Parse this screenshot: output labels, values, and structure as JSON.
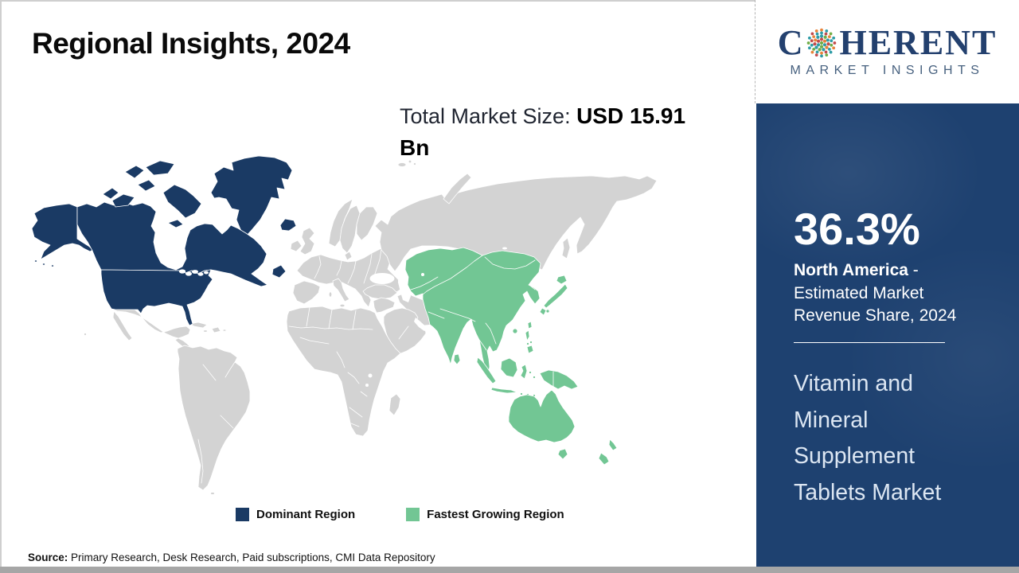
{
  "title": "Regional Insights, 2024",
  "market_size": {
    "label": "Total Market Size: ",
    "value": "USD 15.91 Bn"
  },
  "logo": {
    "brand_c": "C",
    "brand_rest": "HERENT",
    "subtitle": "MARKET INSIGHTS"
  },
  "logo_dot_colors": [
    "#2e9ca6",
    "#70ad47",
    "#c24b4b",
    "#e8833a",
    "#3a6ea5"
  ],
  "sidebar": {
    "share_value": "36.3%",
    "share_region": "North America",
    "share_rest": " - Estimated Market Revenue Share, 2024",
    "market_name": "Vitamin and Mineral Supplement Tablets Market"
  },
  "legend": {
    "dominant": "Dominant Region",
    "fastest": "Fastest Growing Region"
  },
  "source": {
    "label": "Source:",
    "text": " Primary Research, Desk Research, Paid subscriptions, CMI Data Repository"
  },
  "colors": {
    "dominant": "#1a3a64",
    "fastest": "#72c694",
    "land": "#d3d3d3",
    "sidebar-bg": "#1e4170",
    "logo-navy": "#23406e",
    "logo-sub": "#47617f",
    "bottom-bar": "#a6a6a6"
  },
  "chart_data": {
    "type": "choropleth",
    "title": "Regional Insights, 2024",
    "total_market_size": "USD 15.91 Bn",
    "year": 2024,
    "regions": [
      {
        "name": "North America",
        "status": "Dominant Region",
        "share_percent": 36.3,
        "color": "#1a3a64"
      },
      {
        "name": "Asia Pacific",
        "status": "Fastest Growing Region",
        "color": "#72c694"
      },
      {
        "name": "Rest of World",
        "status": "Other",
        "color": "#d3d3d3"
      }
    ],
    "callout": {
      "value": "36.3%",
      "label": "North America - Estimated Market Revenue Share, 2024"
    },
    "market": "Vitamin and Mineral Supplement Tablets Market"
  }
}
